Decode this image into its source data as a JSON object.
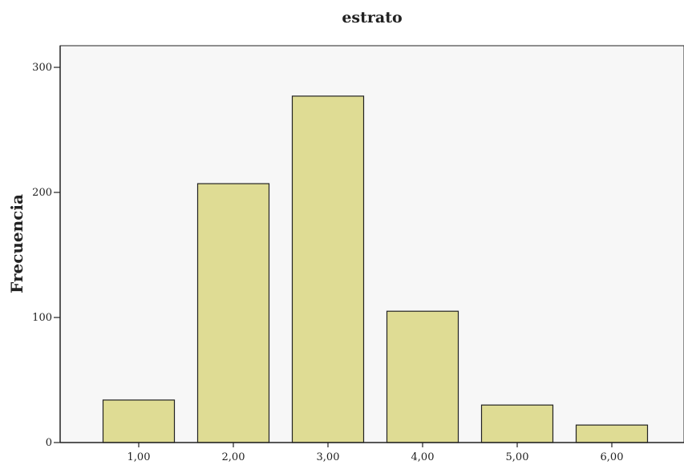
{
  "chart_data": {
    "type": "bar",
    "title": "estrato",
    "xlabel": "",
    "ylabel": "Frecuencia",
    "categories": [
      "1,00",
      "2,00",
      "3,00",
      "4,00",
      "5,00",
      "6,00"
    ],
    "values": [
      34,
      207,
      277,
      105,
      30,
      14
    ],
    "ylim": [
      0,
      300
    ],
    "yticks": [
      "0",
      "100",
      "200",
      "300"
    ],
    "grid": false,
    "legend": "none",
    "colors": {
      "bar_fill": "#dfdc94",
      "bar_stroke": "#222222",
      "plot_background": "#f7f7f7",
      "axis": "#222222"
    }
  }
}
